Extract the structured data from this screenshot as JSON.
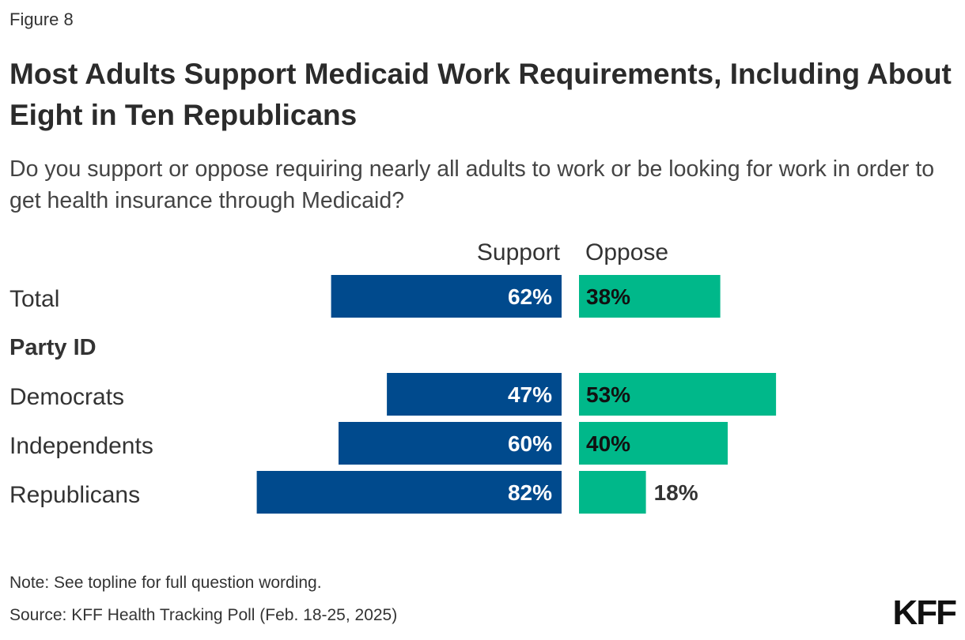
{
  "figure_label": "Figure 8",
  "title": "Most Adults Support Medicaid Work Requirements, Including About Eight in Ten Republicans",
  "subtitle": "Do you support or oppose requiring nearly all adults to work or be looking for work in order to get health insurance through Medicaid?",
  "note": "Note: See topline for full question wording.",
  "source": "Source: KFF Health Tracking Poll (Feb. 18-25, 2025)",
  "logo": "KFF",
  "colors": {
    "support": "#004A8D",
    "oppose": "#00B88A"
  },
  "chart_data": {
    "type": "bar",
    "orientation": "horizontal-diverging",
    "title": "Most Adults Support Medicaid Work Requirements, Including About Eight in Ten Republicans",
    "series_labels": [
      "Support",
      "Oppose"
    ],
    "group_heading": "Party ID",
    "categories": [
      "Total",
      "Democrats",
      "Independents",
      "Republicans"
    ],
    "series": [
      {
        "name": "Support",
        "values": [
          62,
          47,
          60,
          82
        ],
        "labels": [
          "62%",
          "47%",
          "60%",
          "82%"
        ]
      },
      {
        "name": "Oppose",
        "values": [
          38,
          53,
          40,
          18
        ],
        "labels": [
          "38%",
          "53%",
          "40%",
          "18%"
        ]
      }
    ],
    "unit": "%"
  }
}
